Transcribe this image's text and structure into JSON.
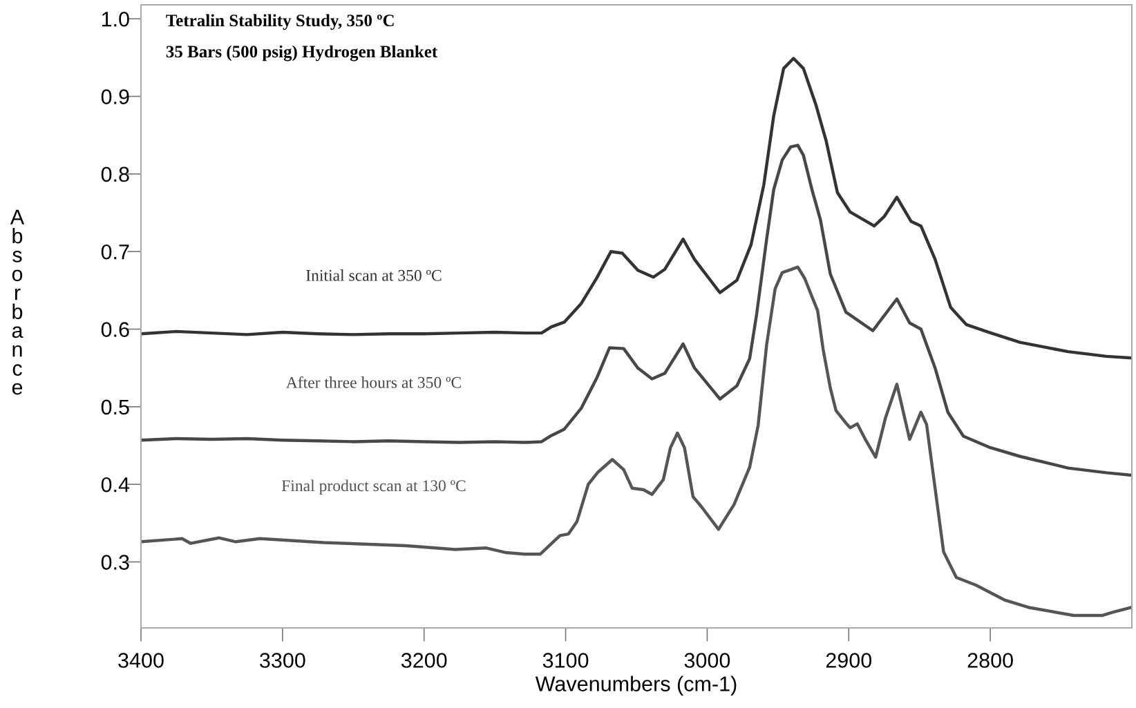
{
  "chart_data": {
    "type": "line",
    "title": "Tetralin Stability Study, 350 ºC",
    "subtitle": "35 Bars (500 psig) Hydrogen Blanket",
    "xlabel": "Wavenumbers (cm-1)",
    "ylabel": "Absorbance",
    "xlim": [
      3400,
      2700
    ],
    "ylim": [
      0.215,
      1.018
    ],
    "xticks": [
      3400,
      3300,
      3200,
      3100,
      3000,
      2900,
      2800
    ],
    "yticks": [
      0.3,
      0.4,
      0.5,
      0.6,
      0.7,
      0.8,
      0.9,
      {
        "value": 1.0,
        "label": "1.0"
      }
    ],
    "grid": false,
    "legend": false,
    "marker": "none",
    "line_style": "solid",
    "series": [
      {
        "name": "Initial scan at 350 ºC",
        "color": "#333333",
        "x": [
          3400,
          3375,
          3350,
          3325,
          3300,
          3275,
          3250,
          3225,
          3200,
          3175,
          3150,
          3129,
          3117,
          3110,
          3101,
          3089,
          3078,
          3068,
          3060,
          3049,
          3038,
          3030,
          3017,
          3009,
          2991,
          2979,
          2969,
          2960,
          2953,
          2946,
          2939,
          2932,
          2923,
          2916,
          2908,
          2899,
          2882,
          2875,
          2866,
          2856,
          2849,
          2839,
          2828,
          2817,
          2801,
          2779,
          2745,
          2718,
          2701
        ],
        "values": [
          0.594,
          0.597,
          0.595,
          0.593,
          0.596,
          0.594,
          0.593,
          0.594,
          0.594,
          0.595,
          0.596,
          0.595,
          0.595,
          0.603,
          0.609,
          0.633,
          0.666,
          0.7,
          0.698,
          0.676,
          0.667,
          0.677,
          0.716,
          0.69,
          0.647,
          0.663,
          0.709,
          0.786,
          0.875,
          0.936,
          0.949,
          0.936,
          0.888,
          0.843,
          0.776,
          0.751,
          0.733,
          0.745,
          0.77,
          0.739,
          0.733,
          0.69,
          0.628,
          0.606,
          0.596,
          0.583,
          0.571,
          0.565,
          0.563
        ]
      },
      {
        "name": "After three hours at 350 ºC",
        "color": "#474747",
        "x": [
          3400,
          3375,
          3350,
          3325,
          3300,
          3275,
          3250,
          3225,
          3200,
          3175,
          3150,
          3129,
          3117,
          3110,
          3101,
          3089,
          3078,
          3069,
          3059,
          3049,
          3039,
          3030,
          3017,
          3009,
          2991,
          2979,
          2970,
          2965,
          2958,
          2953,
          2947,
          2941,
          2936,
          2932,
          2926,
          2920,
          2913,
          2902,
          2883,
          2866,
          2857,
          2849,
          2839,
          2830,
          2819,
          2801,
          2779,
          2745,
          2718,
          2701
        ],
        "values": [
          0.457,
          0.459,
          0.458,
          0.459,
          0.457,
          0.456,
          0.455,
          0.456,
          0.455,
          0.454,
          0.455,
          0.454,
          0.455,
          0.463,
          0.471,
          0.498,
          0.537,
          0.576,
          0.575,
          0.55,
          0.536,
          0.543,
          0.581,
          0.55,
          0.51,
          0.527,
          0.562,
          0.62,
          0.716,
          0.78,
          0.818,
          0.835,
          0.837,
          0.824,
          0.78,
          0.741,
          0.671,
          0.622,
          0.598,
          0.639,
          0.608,
          0.6,
          0.55,
          0.493,
          0.462,
          0.448,
          0.436,
          0.421,
          0.415,
          0.412
        ]
      },
      {
        "name": "Final product scan at 130 ºC",
        "color": "#555555",
        "x": [
          3400,
          3371,
          3365,
          3345,
          3333,
          3316,
          3271,
          3242,
          3213,
          3178,
          3156,
          3142,
          3129,
          3118,
          3104,
          3098,
          3092,
          3084,
          3077,
          3067,
          3059,
          3053,
          3045,
          3039,
          3031,
          3026,
          3021,
          3016,
          3010,
          3004,
          2992,
          2981,
          2970,
          2964,
          2958,
          2952,
          2947,
          2942,
          2936,
          2931,
          2926,
          2922,
          2918,
          2913,
          2909,
          2902,
          2899,
          2894,
          2888,
          2881,
          2874,
          2866,
          2857,
          2849,
          2845,
          2839,
          2833,
          2824,
          2810,
          2790,
          2772,
          2741,
          2721,
          2714,
          2701
        ],
        "values": [
          0.326,
          0.33,
          0.324,
          0.331,
          0.326,
          0.33,
          0.325,
          0.323,
          0.321,
          0.316,
          0.318,
          0.312,
          0.31,
          0.31,
          0.334,
          0.336,
          0.352,
          0.4,
          0.416,
          0.432,
          0.419,
          0.395,
          0.393,
          0.387,
          0.406,
          0.447,
          0.466,
          0.447,
          0.384,
          0.371,
          0.342,
          0.374,
          0.422,
          0.476,
          0.58,
          0.652,
          0.673,
          0.676,
          0.68,
          0.665,
          0.642,
          0.624,
          0.573,
          0.524,
          0.495,
          0.479,
          0.473,
          0.478,
          0.457,
          0.435,
          0.486,
          0.529,
          0.458,
          0.493,
          0.477,
          0.395,
          0.313,
          0.28,
          0.27,
          0.251,
          0.241,
          0.231,
          0.231,
          0.235,
          0.241
        ]
      }
    ]
  }
}
